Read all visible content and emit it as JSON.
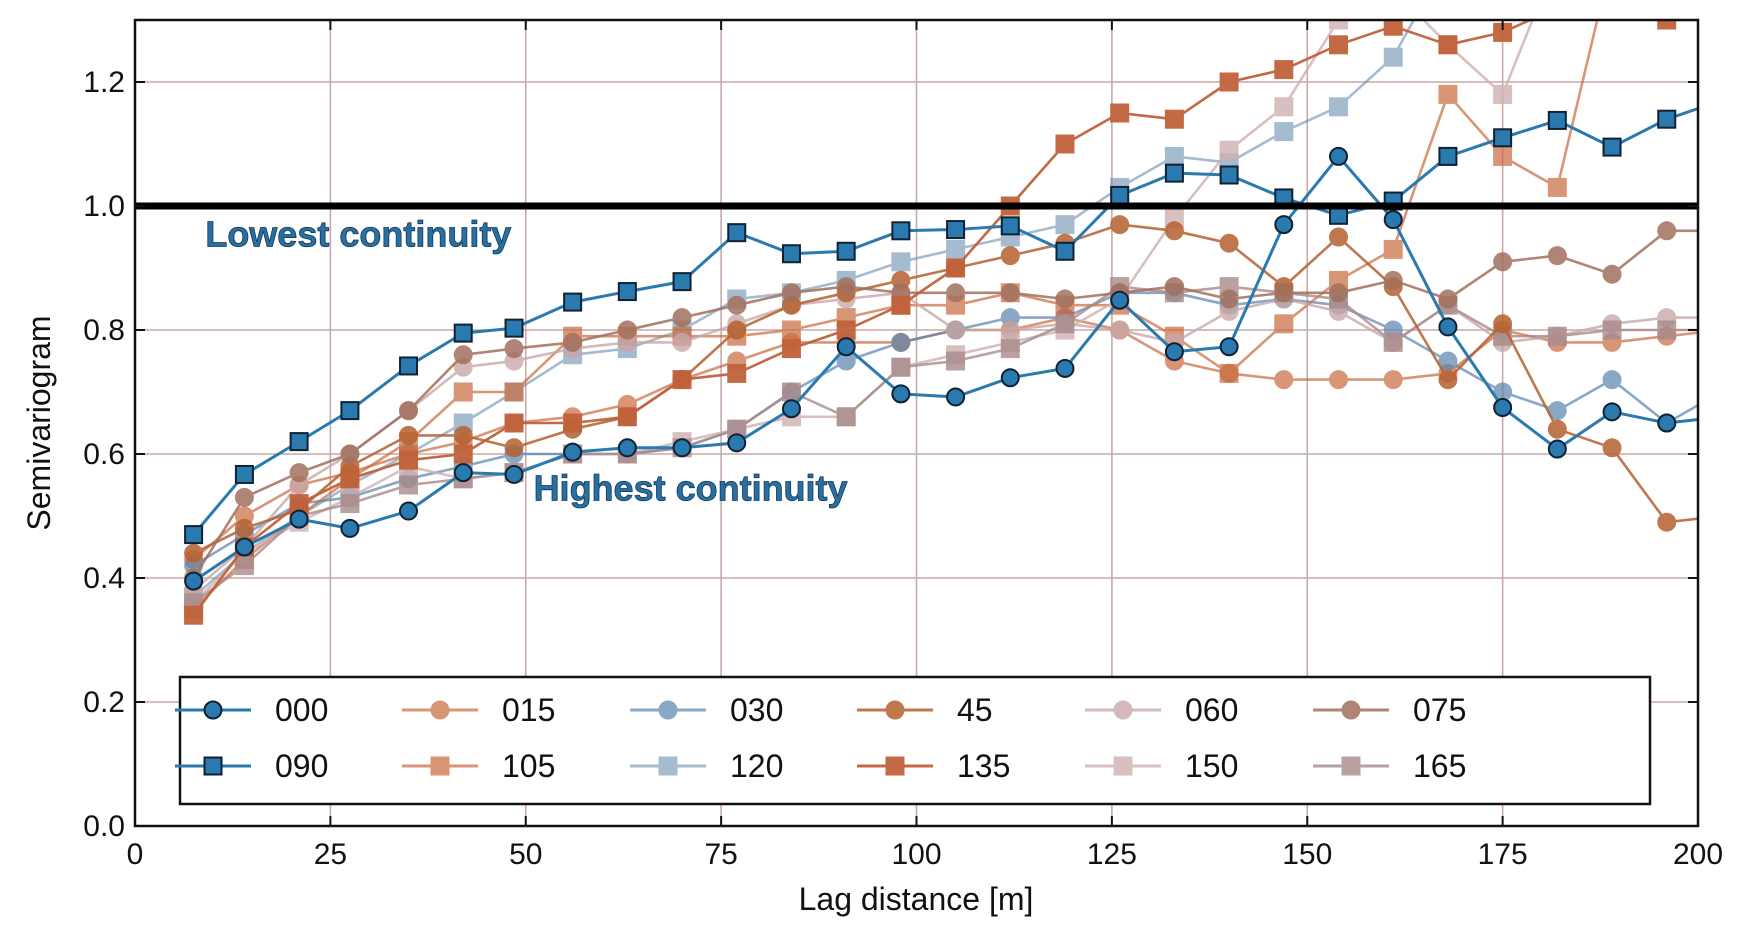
{
  "chart_data": {
    "type": "line",
    "xlabel": "Lag distance [m]",
    "ylabel": "Semivariogram",
    "xlim": [
      0,
      200
    ],
    "ylim": [
      0,
      1.3
    ],
    "xticks": [
      0,
      25,
      50,
      75,
      100,
      125,
      150,
      175,
      200
    ],
    "yticks": [
      "0.0",
      "0.2",
      "0.4",
      "0.6",
      "0.8",
      "1.0",
      "1.2"
    ],
    "grid": true,
    "legend_position": "bottom",
    "reference_line": 1.0,
    "annotations": [
      {
        "text": "Lowest continuity",
        "x": 9,
        "y": 0.935
      },
      {
        "text": "Highest continuity",
        "x": 51,
        "y": 0.525
      }
    ],
    "x": [
      7.5,
      14,
      21,
      27.5,
      35,
      42,
      48.5,
      56,
      63,
      70,
      77,
      84,
      91,
      98,
      105,
      112,
      119,
      126,
      133,
      140,
      147,
      154,
      161,
      168,
      175,
      182,
      189,
      196,
      203
    ],
    "series": [
      {
        "name": "000",
        "marker": "circle",
        "color": "#2a7ab0",
        "opacity": 1.0,
        "values": [
          0.395,
          0.45,
          0.495,
          0.48,
          0.508,
          0.57,
          0.567,
          0.603,
          0.61,
          0.61,
          0.618,
          0.673,
          0.773,
          0.697,
          0.692,
          0.723,
          0.738,
          0.848,
          0.765,
          0.773,
          0.97,
          1.08,
          0.978,
          0.805,
          0.675,
          0.608,
          0.668,
          0.65,
          0.66
        ]
      },
      {
        "name": "015",
        "marker": "circle",
        "color": "#c96a3e",
        "opacity": 0.7,
        "values": [
          0.43,
          0.5,
          0.55,
          0.57,
          0.6,
          0.62,
          0.65,
          0.66,
          0.68,
          0.72,
          0.75,
          0.78,
          0.78,
          0.78,
          0.8,
          0.8,
          0.82,
          0.8,
          0.75,
          0.73,
          0.72,
          0.72,
          0.72,
          0.73,
          0.8,
          0.78,
          0.78,
          0.79,
          0.8
        ]
      },
      {
        "name": "030",
        "marker": "circle",
        "color": "#5a83ad",
        "opacity": 0.7,
        "values": [
          0.42,
          0.47,
          0.52,
          0.53,
          0.56,
          0.58,
          0.6,
          0.6,
          0.6,
          0.61,
          0.64,
          0.7,
          0.75,
          0.78,
          0.8,
          0.82,
          0.82,
          0.86,
          0.86,
          0.84,
          0.85,
          0.84,
          0.8,
          0.75,
          0.7,
          0.67,
          0.72,
          0.65,
          0.7
        ]
      },
      {
        "name": "45",
        "marker": "circle",
        "color": "#b5612f",
        "opacity": 0.85,
        "values": [
          0.44,
          0.48,
          0.51,
          0.58,
          0.63,
          0.63,
          0.61,
          0.64,
          0.66,
          0.72,
          0.8,
          0.84,
          0.86,
          0.88,
          0.9,
          0.92,
          0.94,
          0.97,
          0.96,
          0.94,
          0.87,
          0.95,
          0.87,
          0.72,
          0.81,
          0.64,
          0.61,
          0.49,
          0.5
        ]
      },
      {
        "name": "060",
        "marker": "circle",
        "color": "#c9a8a8",
        "opacity": 0.8,
        "values": [
          0.38,
          0.45,
          0.55,
          0.6,
          0.67,
          0.74,
          0.75,
          0.77,
          0.78,
          0.78,
          0.81,
          0.84,
          0.85,
          0.86,
          0.8,
          0.8,
          0.81,
          0.8,
          0.78,
          0.83,
          0.85,
          0.83,
          0.78,
          0.84,
          0.78,
          0.79,
          0.81,
          0.82,
          0.82
        ]
      },
      {
        "name": "075",
        "marker": "circle",
        "color": "#a2705e",
        "opacity": 0.85,
        "values": [
          0.4,
          0.53,
          0.57,
          0.6,
          0.67,
          0.76,
          0.77,
          0.78,
          0.8,
          0.82,
          0.84,
          0.86,
          0.87,
          0.86,
          0.86,
          0.86,
          0.85,
          0.86,
          0.87,
          0.85,
          0.86,
          0.86,
          0.88,
          0.85,
          0.91,
          0.92,
          0.89,
          0.96,
          0.96
        ]
      },
      {
        "name": "090",
        "marker": "square",
        "color": "#2a7ab0",
        "opacity": 1.0,
        "values": [
          0.47,
          0.567,
          0.62,
          0.67,
          0.742,
          0.795,
          0.803,
          0.845,
          0.862,
          0.878,
          0.957,
          0.923,
          0.927,
          0.96,
          0.962,
          0.968,
          0.927,
          1.017,
          1.053,
          1.05,
          1.013,
          0.985,
          1.008,
          1.08,
          1.11,
          1.138,
          1.095,
          1.14,
          1.17
        ]
      },
      {
        "name": "105",
        "marker": "square",
        "color": "#c96a3e",
        "opacity": 0.7,
        "values": [
          0.35,
          0.43,
          0.5,
          0.56,
          0.62,
          0.7,
          0.7,
          0.79,
          0.79,
          0.79,
          0.79,
          0.8,
          0.82,
          0.84,
          0.84,
          0.86,
          0.84,
          0.84,
          0.79,
          0.73,
          0.81,
          0.88,
          0.93,
          1.18,
          1.08,
          1.03,
          1.4,
          1.4,
          1.4
        ]
      },
      {
        "name": "120",
        "marker": "square",
        "color": "#6a8fb2",
        "opacity": 0.6,
        "values": [
          0.37,
          0.44,
          0.5,
          0.55,
          0.6,
          0.65,
          0.7,
          0.76,
          0.77,
          0.8,
          0.85,
          0.86,
          0.88,
          0.91,
          0.93,
          0.95,
          0.97,
          1.03,
          1.08,
          1.07,
          1.12,
          1.16,
          1.24,
          1.4,
          1.4,
          1.4,
          1.4,
          1.4,
          1.4
        ]
      },
      {
        "name": "135",
        "marker": "square",
        "color": "#c0623a",
        "opacity": 0.95,
        "values": [
          0.34,
          0.45,
          0.52,
          0.56,
          0.59,
          0.6,
          0.65,
          0.65,
          0.66,
          0.72,
          0.73,
          0.77,
          0.8,
          0.84,
          0.9,
          1.0,
          1.1,
          1.15,
          1.14,
          1.2,
          1.22,
          1.26,
          1.29,
          1.26,
          1.28,
          1.32,
          1.32,
          1.3,
          1.3
        ]
      },
      {
        "name": "150",
        "marker": "square",
        "color": "#d0b0b0",
        "opacity": 0.8,
        "values": [
          0.36,
          0.44,
          0.49,
          0.53,
          0.58,
          0.56,
          0.57,
          0.6,
          0.6,
          0.62,
          0.64,
          0.66,
          0.66,
          0.74,
          0.76,
          0.78,
          0.8,
          0.85,
          0.98,
          1.09,
          1.16,
          1.3,
          1.35,
          1.26,
          1.18,
          1.4,
          1.4,
          1.4,
          1.4
        ]
      },
      {
        "name": "165",
        "marker": "square",
        "color": "#a88a8a",
        "opacity": 0.8,
        "values": [
          0.36,
          0.42,
          0.5,
          0.52,
          0.55,
          0.56,
          0.57,
          0.6,
          0.6,
          0.61,
          0.64,
          0.7,
          0.66,
          0.74,
          0.75,
          0.77,
          0.81,
          0.87,
          0.86,
          0.87,
          0.86,
          0.85,
          0.78,
          0.84,
          0.79,
          0.79,
          0.8,
          0.8,
          0.8
        ]
      }
    ]
  }
}
